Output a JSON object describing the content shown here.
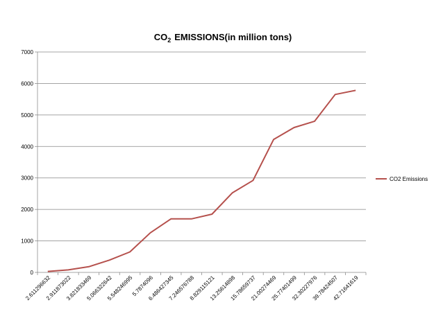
{
  "chart_data": {
    "type": "line",
    "title": "EMISSIONS(in million tons)",
    "title_prefix": "CO",
    "title_subscript": "2",
    "xlabel": "",
    "ylabel": "",
    "x": [
      "2.611296632",
      "2.911873022",
      "3.821833469",
      "5.066322642",
      "5.548246995",
      "5.7874096",
      "6.486427345",
      "7.246576788",
      "8.829115121",
      "13.25614898",
      "15.78659737",
      "21.00274469",
      "25.77401499",
      "32.30227976",
      "39.78424507",
      "42.71641619"
    ],
    "series": [
      {
        "name": "CO2  Emissions",
        "values": [
          30,
          80,
          180,
          390,
          650,
          1260,
          1700,
          1700,
          1850,
          2530,
          2920,
          4220,
          4600,
          4800,
          5650,
          5780
        ]
      }
    ],
    "ylim": [
      0,
      7000
    ],
    "yticks": [
      0,
      1000,
      2000,
      3000,
      4000,
      5000,
      6000,
      7000
    ],
    "grid": true,
    "legend_position": "right",
    "colors": {
      "series": "#B5504C",
      "grid": "#868686",
      "axis": "#868686"
    }
  }
}
